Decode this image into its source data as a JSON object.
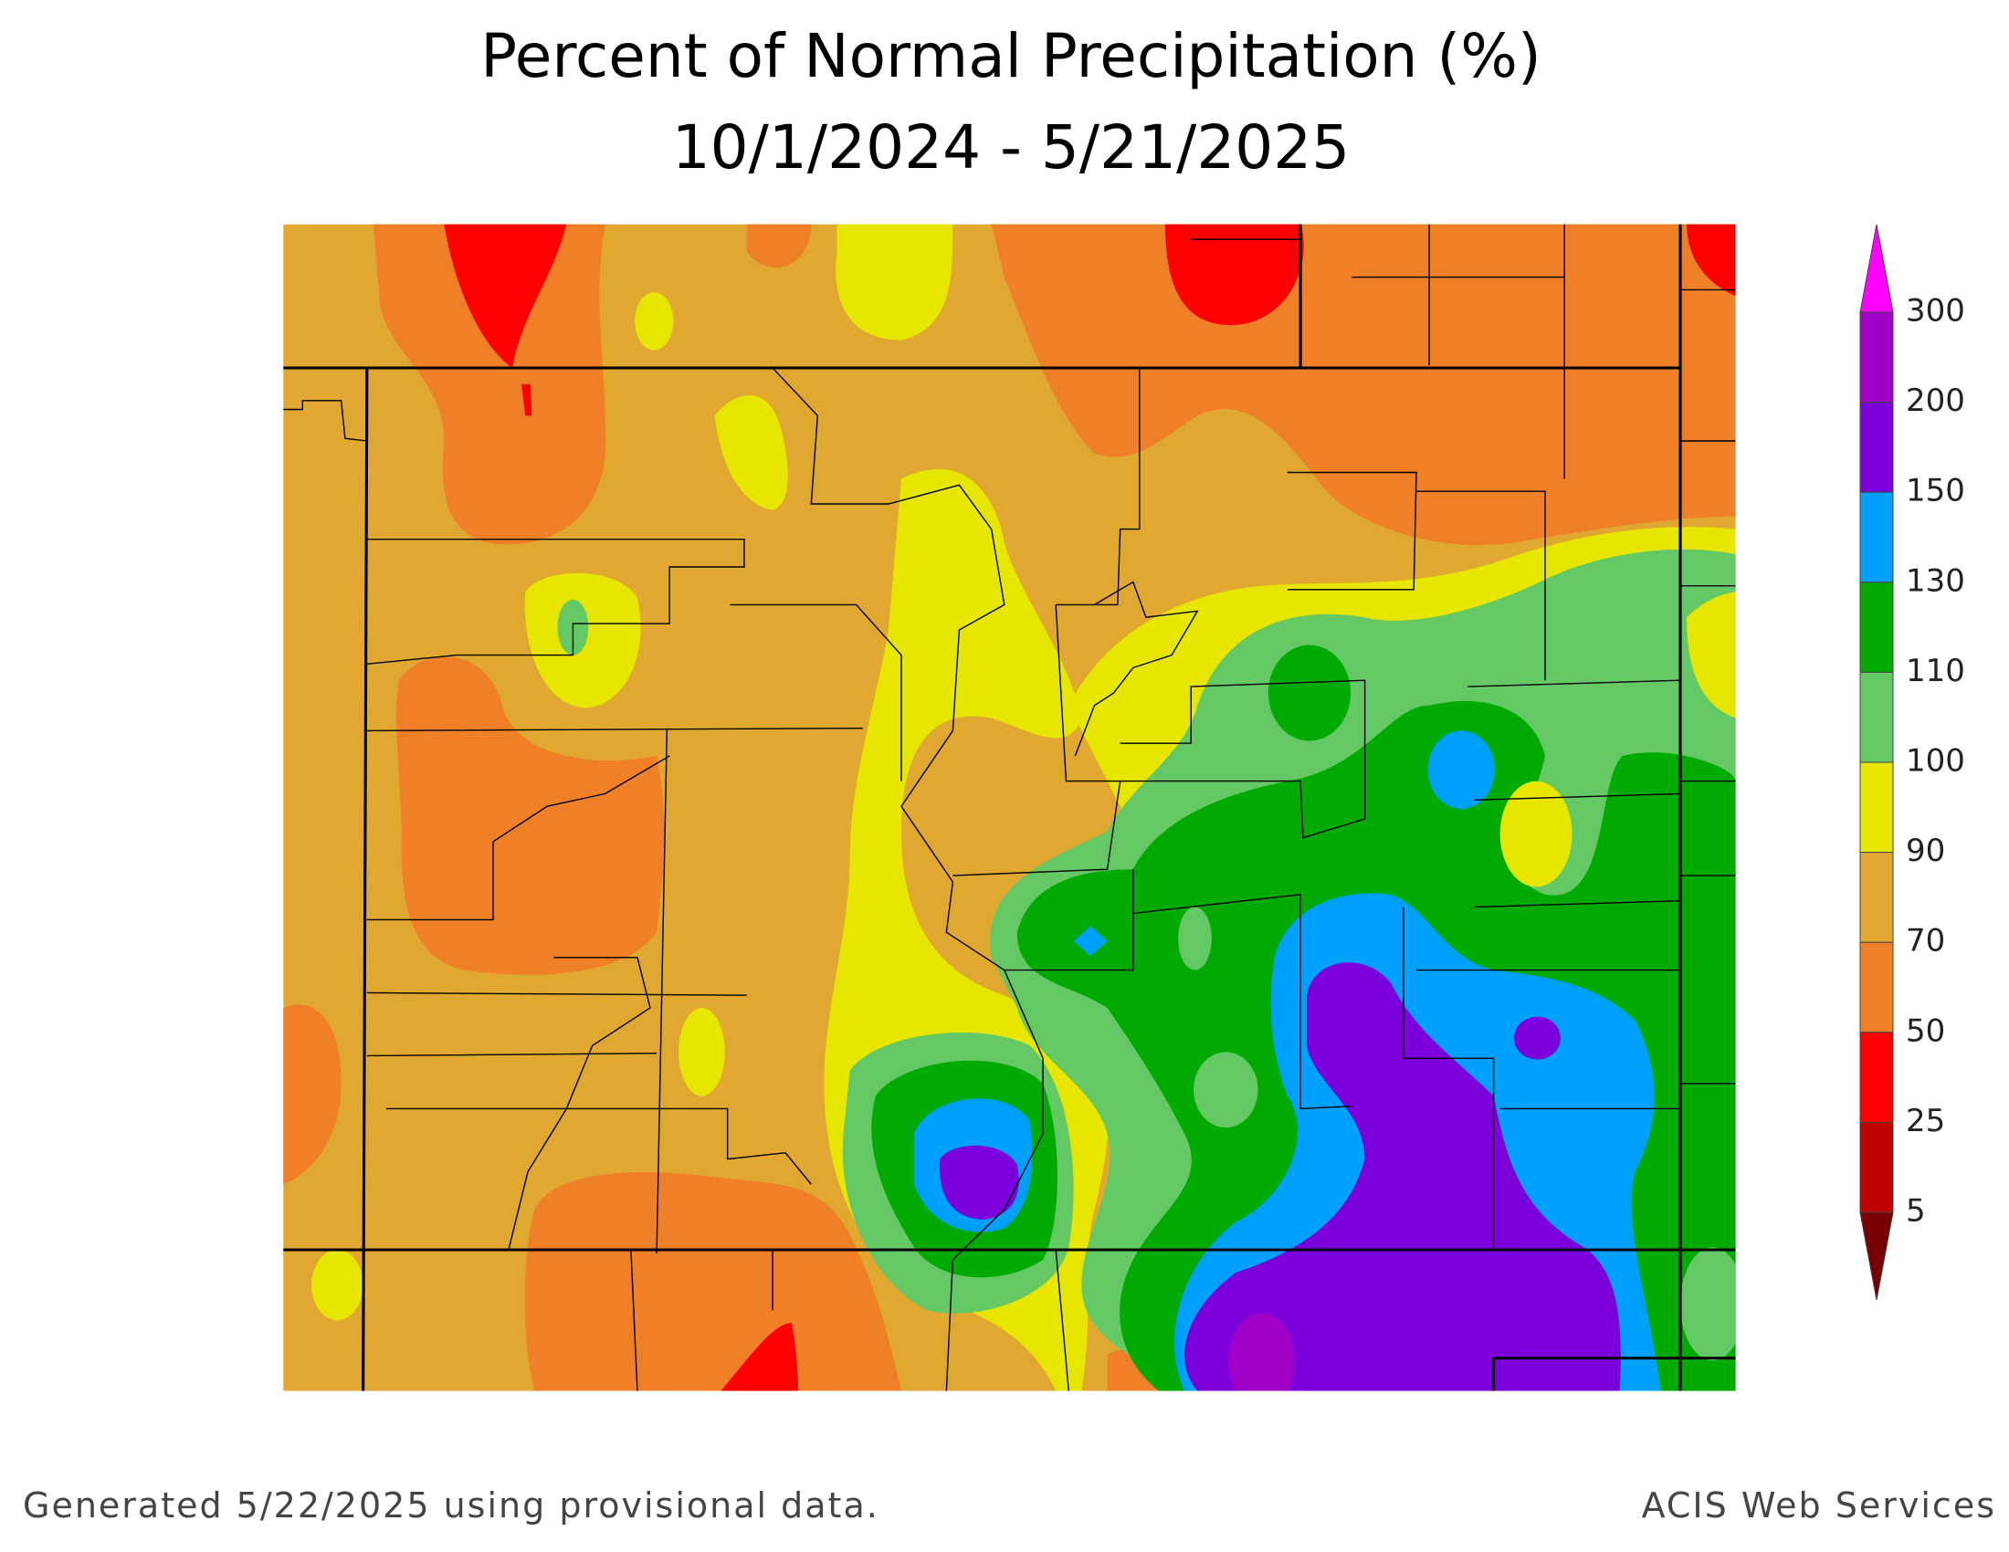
{
  "title": [
    "Percent of Normal Precipitation (%)",
    "10/1/2024 - 5/21/2025"
  ],
  "legend": {
    "levels": [
      300,
      200,
      150,
      130,
      110,
      100,
      90,
      70,
      50,
      25,
      5
    ],
    "colors": [
      "#ff00ff",
      "#a000c8",
      "#7c00dc",
      "#00a0ff",
      "#00aa00",
      "#64c864",
      "#e6e600",
      "#e0a830",
      "#f08028",
      "#ff0000",
      "#c00000",
      "#780000"
    ]
  },
  "footer": {
    "left": "Generated 5/22/2025 using provisional data.",
    "right": "ACIS Web Services"
  }
}
